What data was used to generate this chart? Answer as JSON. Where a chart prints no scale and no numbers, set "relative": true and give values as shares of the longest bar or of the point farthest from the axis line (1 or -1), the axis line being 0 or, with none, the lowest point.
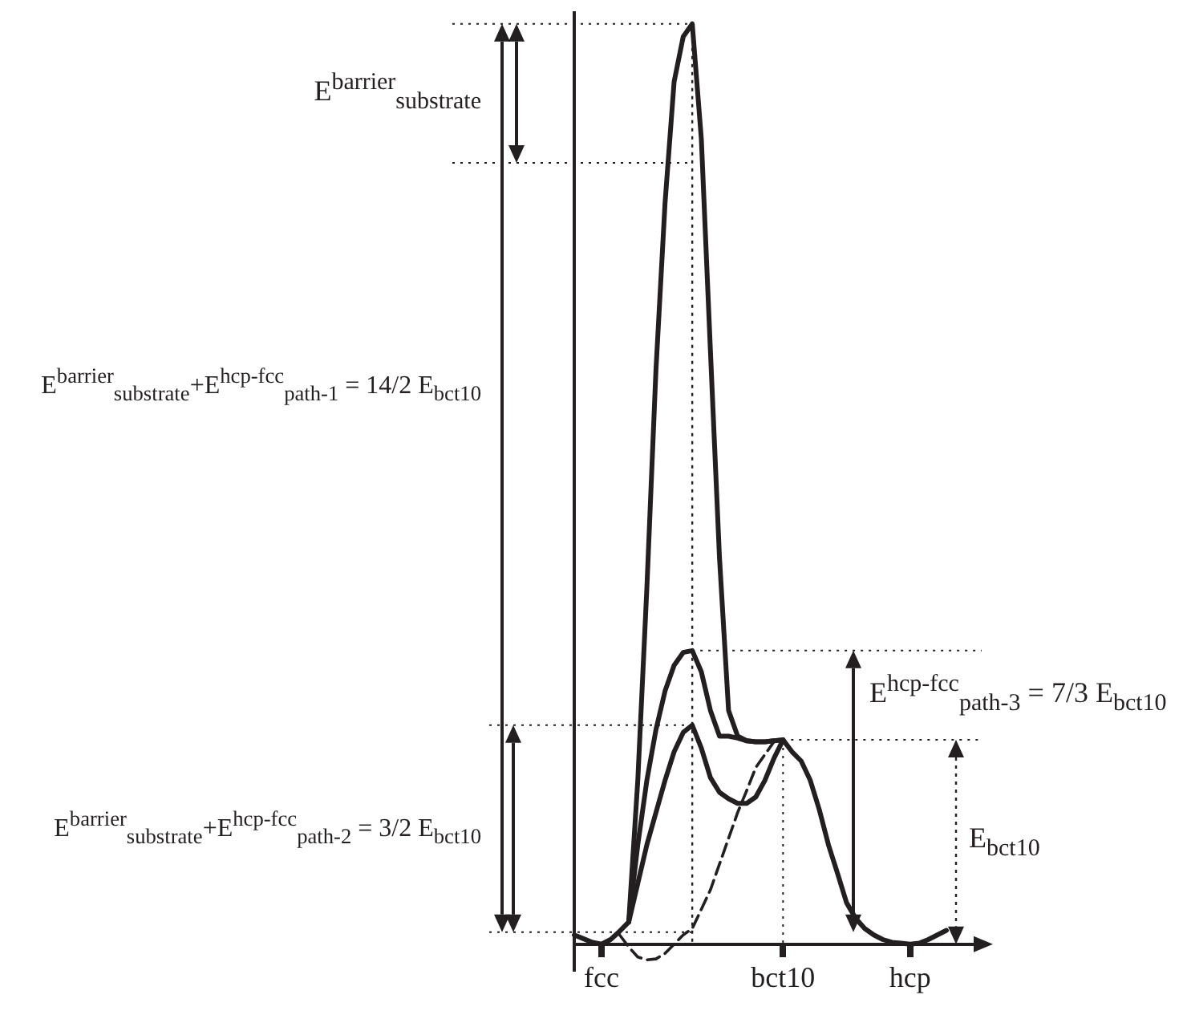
{
  "chart_data": {
    "type": "line",
    "relative": true,
    "categories": [
      null,
      null,
      null,
      "fcc",
      null,
      null,
      null,
      null,
      null,
      null,
      null,
      null,
      null,
      null,
      null,
      null,
      null,
      null,
      null,
      null,
      null,
      null,
      null,
      "bct10",
      null,
      null,
      null,
      null,
      null,
      null,
      null,
      null,
      null,
      null,
      null,
      null,
      null,
      "hcp",
      null,
      null,
      null,
      null,
      null,
      null,
      null
    ],
    "series": [
      {
        "color": "#231f20",
        "values": [
          0.01,
          0.006,
          0.002,
          0,
          0.005,
          0.014,
          0.024,
          0.178,
          0.387,
          0.624,
          0.805,
          0.937,
          0.986,
          1,
          0.875,
          0.645,
          0.42,
          0.254,
          0.226,
          0.221,
          0.22,
          0.22,
          0.221,
          0.222,
          0.209,
          0.199,
          0.178,
          0.146,
          0.108,
          0.077,
          0.045,
          0.028,
          0.017,
          0.01,
          0.005,
          0.002,
          0.001,
          0,
          0.001,
          0.005,
          0.01,
          0.015,
          null,
          null,
          null
        ]
      },
      {
        "color": "#231f20",
        "values": [
          null,
          null,
          null,
          null,
          null,
          null,
          0.024,
          0.108,
          0.178,
          0.233,
          0.275,
          0.303,
          0.317,
          0.319,
          0.296,
          0.254,
          0.226,
          0.226,
          0.224,
          0.221,
          0.22,
          0.22,
          0.221,
          0.222,
          null,
          null,
          null,
          null,
          null,
          null,
          null,
          null,
          null,
          null,
          null,
          null,
          null,
          null,
          null,
          null,
          null,
          null,
          null,
          null,
          null
        ]
      },
      {
        "color": "#231f20",
        "values": [
          null,
          null,
          null,
          null,
          null,
          null,
          0.024,
          0.066,
          0.108,
          0.143,
          0.178,
          0.209,
          0.23,
          0.238,
          0.213,
          0.181,
          0.165,
          0.158,
          0.153,
          0.153,
          0.16,
          0.178,
          0.202,
          0.222,
          null,
          null,
          null,
          null,
          null,
          null,
          null,
          null,
          null,
          null,
          null,
          null,
          null,
          null,
          null,
          null,
          null,
          null,
          null,
          null,
          null
        ]
      },
      {
        "color": "#231f20",
        "line_style": "dashed",
        "values": [
          null,
          null,
          null,
          null,
          null,
          0.01,
          -0.003,
          -0.014,
          -0.017,
          -0.016,
          -0.01,
          0,
          0.01,
          0.017,
          0.038,
          0.059,
          0.087,
          0.115,
          0.143,
          0.167,
          0.192,
          0.206,
          0.22,
          0.222,
          null,
          null,
          null,
          null,
          null,
          null,
          null,
          null,
          null,
          null,
          null,
          null,
          null,
          null,
          null,
          null,
          null,
          null,
          null,
          null,
          null
        ]
      }
    ],
    "line_style": "solid",
    "ref_lines": [
      {
        "axis": "y",
        "value": 1,
        "line_style": "dotted",
        "color": "#231f20"
      },
      {
        "axis": "y",
        "value": 0.849,
        "line_style": "dotted",
        "color": "#231f20"
      },
      {
        "axis": "y",
        "value": 0.319,
        "line_style": "dotted",
        "color": "#231f20"
      },
      {
        "axis": "y",
        "value": 0.238,
        "line_style": "dotted",
        "color": "#231f20"
      },
      {
        "axis": "y",
        "value": 0.222,
        "line_style": "dotted",
        "color": "#231f20"
      },
      {
        "axis": "y",
        "value": 0.013,
        "line_style": "dotted",
        "color": "#231f20"
      },
      {
        "axis": "x",
        "value": "bct10",
        "line_style": "dotted",
        "color": "#231f20"
      }
    ],
    "annotations": [
      "E$^{barrier}$$_{substrate}$",
      "E$^{barrier}$$_{substrate}$+E$^{hcp-fcc}$$_{path-1}$ = 14/2 E$_{bct10}$",
      "E$^{barrier}$$_{substrate}$+E$^{hcp-fcc}$$_{path-2}$ = 3/2 E$_{bct10}$",
      "E$^{hcp-fcc}$$_{path-3}$ = 7/3 E$_{bct10}$",
      "E$_{bct10}$"
    ]
  }
}
